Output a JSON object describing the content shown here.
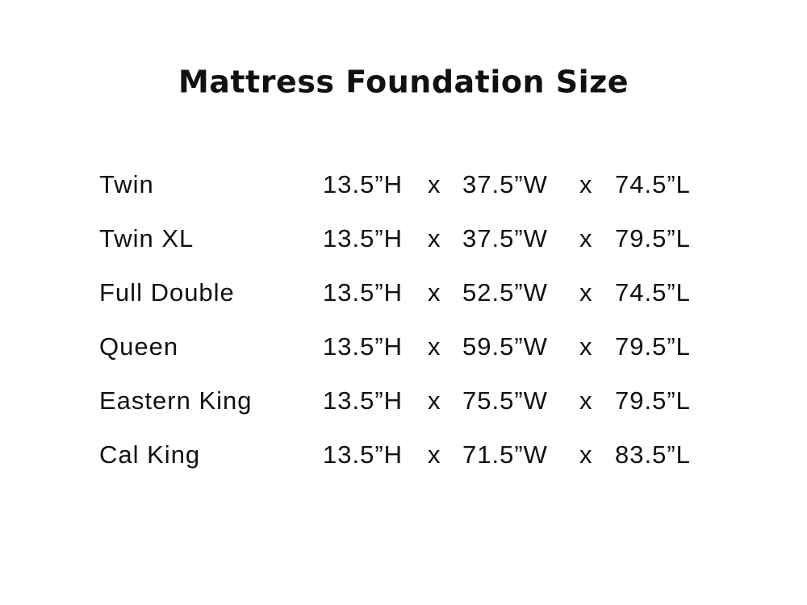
{
  "header": {
    "title": "Mattress Foundation Size"
  },
  "table": {
    "rows": [
      [
        "Twin",
        "13.5”H",
        "x",
        "37.5”W",
        "x",
        "74.5”L"
      ],
      [
        "Twin XL",
        "13.5”H",
        "x",
        "37.5”W",
        "x",
        "79.5”L"
      ],
      [
        "Full Double",
        "13.5”H",
        "x",
        "52.5”W",
        "x",
        "74.5”L"
      ],
      [
        "Queen",
        "13.5”H",
        "x",
        "59.5”W",
        "x",
        "79.5”L"
      ],
      [
        "Eastern King",
        "13.5”H",
        "x",
        "75.5”W",
        "x",
        "79.5”L"
      ],
      [
        "Cal King",
        "13.5”H",
        "x",
        "71.5”W",
        "x",
        "83.5”L"
      ]
    ]
  }
}
